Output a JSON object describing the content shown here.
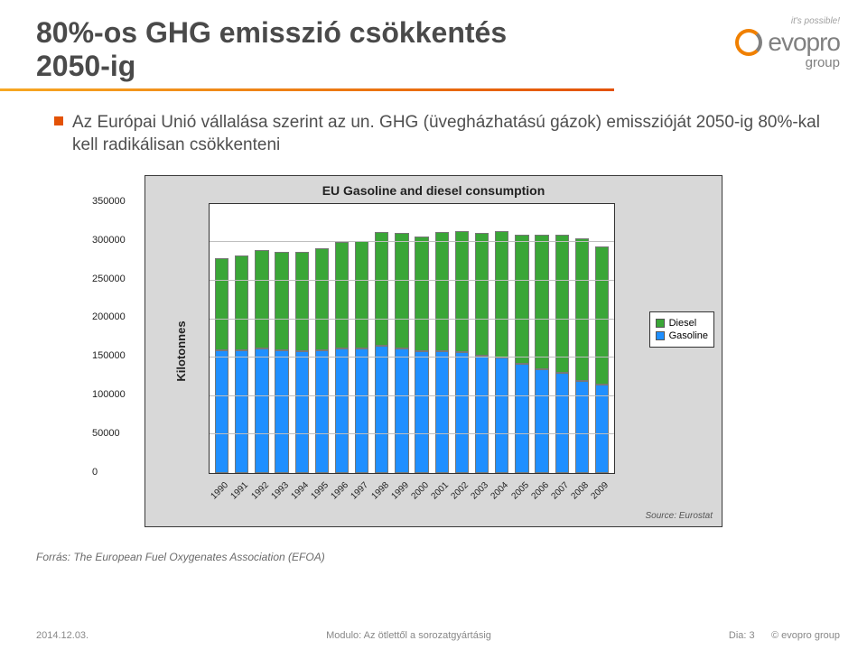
{
  "header": {
    "title_line1": "80%-os GHG emisszió csökkentés",
    "title_line2": "2050-ig",
    "logo_tag": "it's possible!",
    "logo_name": "evopro",
    "logo_sub": "group"
  },
  "bullet": {
    "text": "Az Európai Unió vállalása szerint az un. GHG (üvegházhatású gázok) emisszióját 2050-ig 80%-kal kell radikálisan csökkenteni"
  },
  "chart": {
    "type": "stacked-bar",
    "title": "EU Gasoline and diesel consumption",
    "ylabel": "Kilotonnes",
    "ylim_max": 350000,
    "yticks": [
      0,
      50000,
      100000,
      150000,
      200000,
      250000,
      300000,
      350000
    ],
    "categories": [
      "1990",
      "1991",
      "1992",
      "1993",
      "1994",
      "1995",
      "1996",
      "1997",
      "1998",
      "1999",
      "2000",
      "2001",
      "2002",
      "2003",
      "2004",
      "2005",
      "2006",
      "2007",
      "2008",
      "2009"
    ],
    "series": {
      "gasoline": {
        "label": "Gasoline",
        "color": "#1f8fff",
        "values": [
          160000,
          160000,
          162000,
          160000,
          158000,
          160000,
          162000,
          162000,
          165000,
          162000,
          158000,
          158000,
          157000,
          152000,
          150000,
          142000,
          135000,
          130000,
          120000,
          115000
        ]
      },
      "diesel": {
        "label": "Diesel",
        "color": "#3aa637",
        "values": [
          120000,
          123000,
          128000,
          128000,
          130000,
          132000,
          138000,
          140000,
          148000,
          150000,
          150000,
          155000,
          158000,
          160000,
          165000,
          168000,
          175000,
          180000,
          185000,
          180000
        ]
      }
    },
    "legend_order": [
      "diesel",
      "gasoline"
    ],
    "background": "#d8d8d8",
    "plot_bg": "#ffffff",
    "grid_color": "#bfbfbf",
    "border_color": "#333333",
    "source": "Source: Eurostat"
  },
  "citation": "Forrás: The European Fuel Oxygenates Association (EFOA)",
  "footer": {
    "date": "2014.12.03.",
    "center": "Modulo: Az ötlettől a sorozatgyártásig",
    "slide": "Dia: 3",
    "copyright": "© evopro  group"
  }
}
